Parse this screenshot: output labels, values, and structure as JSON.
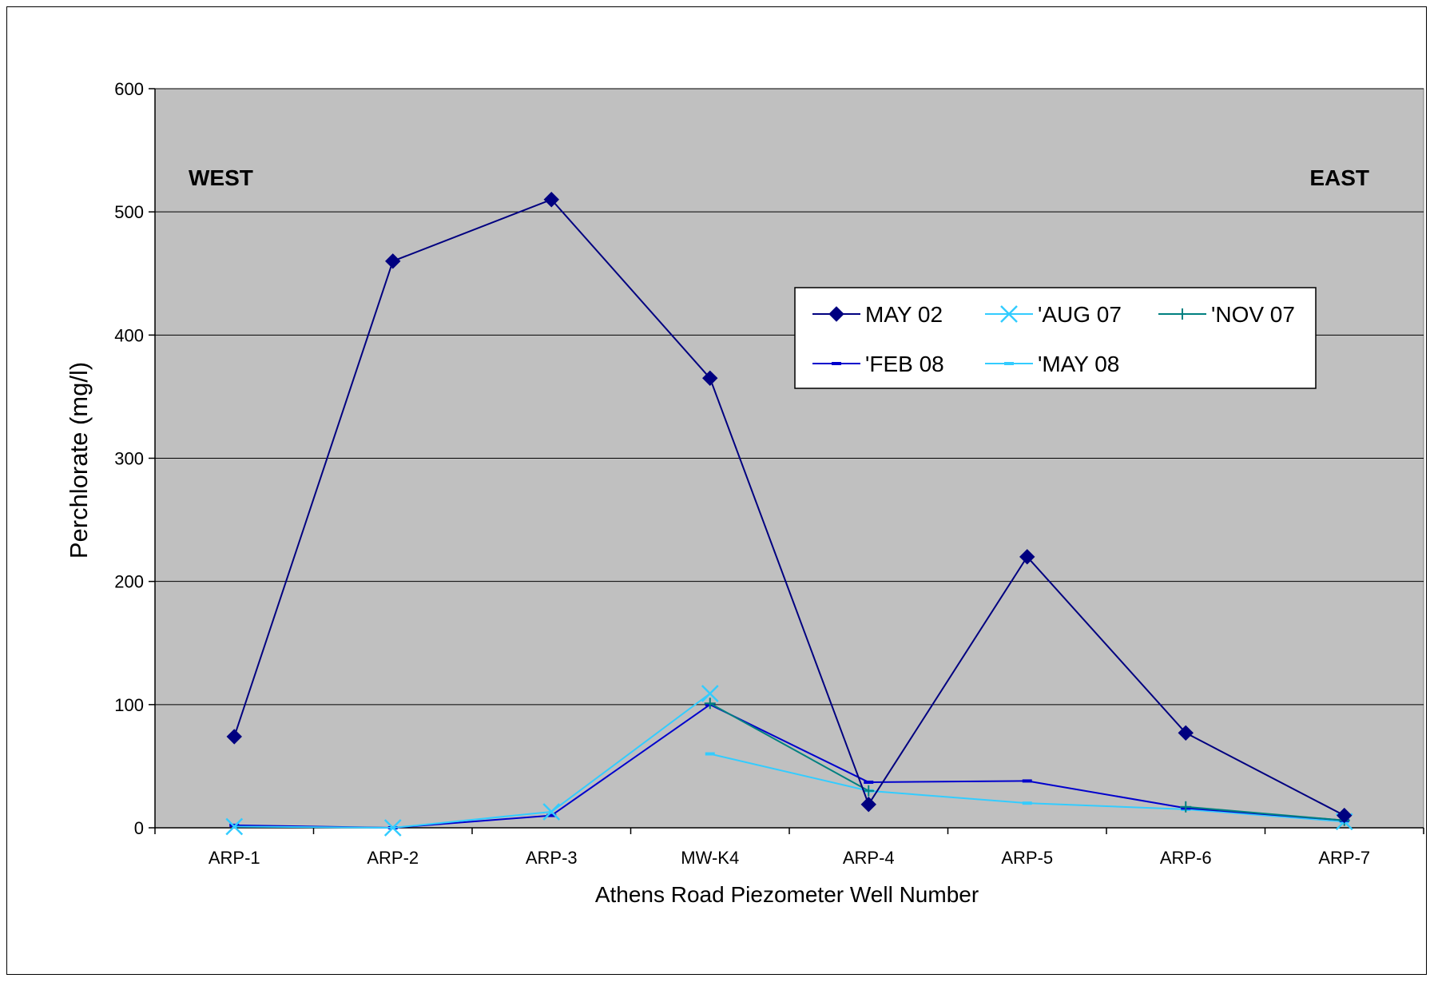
{
  "chart_data": {
    "type": "line",
    "title": "",
    "xlabel": "Athens Road Piezometer Well Number",
    "ylabel": "Perchlorate (mg/l)",
    "ylim": [
      0,
      600
    ],
    "yticks": [
      0,
      100,
      200,
      300,
      400,
      500,
      600
    ],
    "grid": true,
    "legend_position": "top-right",
    "categories": [
      "ARP-1",
      "ARP-2",
      "ARP-3",
      "MW-K4",
      "ARP-4",
      "ARP-5",
      "ARP-6",
      "ARP-7"
    ],
    "annotations": {
      "west": "WEST",
      "east": "EAST"
    },
    "plot_background": "#c0c0c0",
    "series": [
      {
        "name": "MAY 02",
        "color": "#000080",
        "marker": "diamond",
        "values": [
          74,
          460,
          510,
          365,
          19,
          220,
          77,
          10
        ]
      },
      {
        "name": "'AUG 07",
        "color": "#33ccff",
        "marker": "x",
        "values": [
          1,
          0,
          13,
          109,
          null,
          null,
          null,
          5
        ]
      },
      {
        "name": "'NOV 07",
        "color": "#008080",
        "marker": "plus",
        "values": [
          null,
          null,
          null,
          101,
          30,
          null,
          17,
          6
        ]
      },
      {
        "name": "'FEB 08",
        "color": "#0000cc",
        "marker": "dash",
        "values": [
          2,
          0,
          10,
          100,
          37,
          38,
          16,
          6
        ]
      },
      {
        "name": "'MAY 08",
        "color": "#33ccff",
        "marker": "dash",
        "values": [
          null,
          null,
          null,
          60,
          30,
          20,
          15,
          5
        ]
      }
    ]
  }
}
